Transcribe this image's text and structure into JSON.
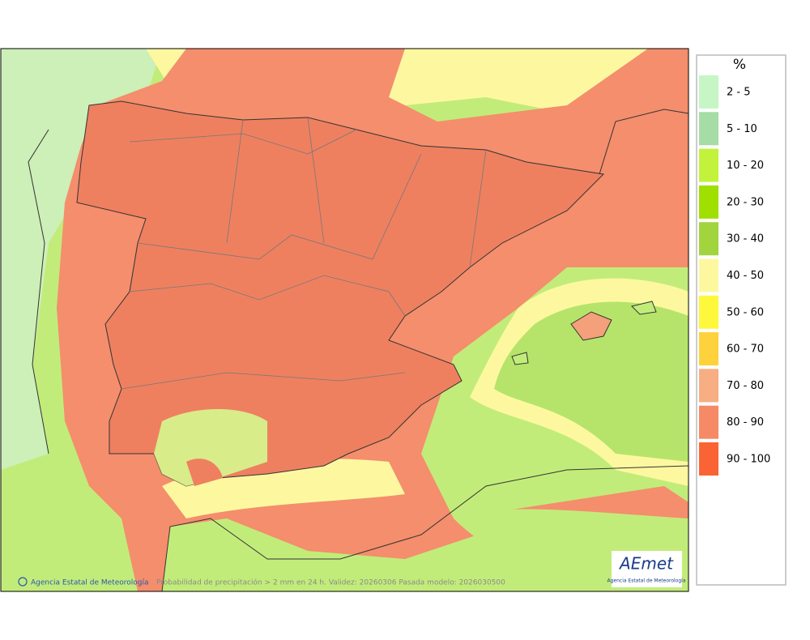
{
  "legend": {
    "title": "%",
    "items": [
      {
        "label": "2 - 5",
        "color": "#c6f6c6"
      },
      {
        "label": "5 - 10",
        "color": "#a6dca6"
      },
      {
        "label": "10 - 20",
        "color": "#c2f23c"
      },
      {
        "label": "20 - 30",
        "color": "#a0e000"
      },
      {
        "label": "30 - 40",
        "color": "#a2d43e"
      },
      {
        "label": "40 - 50",
        "color": "#fdf8a0"
      },
      {
        "label": "50 - 60",
        "color": "#fdf83c"
      },
      {
        "label": "60 - 70",
        "color": "#fdd23c"
      },
      {
        "label": "70 - 80",
        "color": "#f6ae82"
      },
      {
        "label": "80 - 90",
        "color": "#f68a66"
      },
      {
        "label": "90 - 100",
        "color": "#fa6434"
      }
    ]
  },
  "footer": {
    "credit": "Agencia Estatal de Meteorología",
    "caption": "Probabilidad de precipitación > 2 mm en 24 h. Validez: 20260306 Pasada modelo: 2026030500"
  },
  "logo": {
    "name": "AEmet",
    "subtitle": "Agencia Estatal de Meteorología"
  }
}
